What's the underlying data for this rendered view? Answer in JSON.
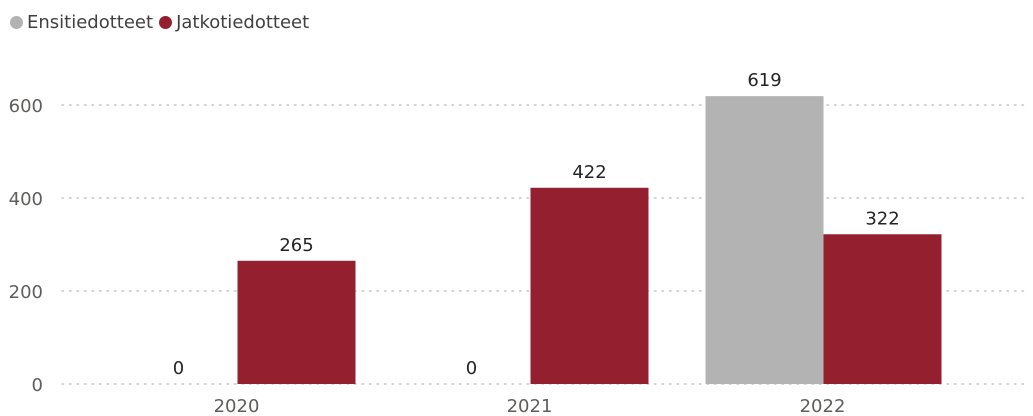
{
  "chart_data": {
    "type": "bar",
    "categories": [
      "2020",
      "2021",
      "2022"
    ],
    "series": [
      {
        "name": "Ensitiedotteet",
        "color": "#b3b3b3",
        "values": [
          0,
          0,
          619
        ]
      },
      {
        "name": "Jatkotiedotteet",
        "color": "#94202f",
        "values": [
          265,
          422,
          322
        ]
      }
    ],
    "yticks": [
      0,
      200,
      400,
      600
    ],
    "ylim": [
      0,
      640
    ],
    "grid": true,
    "legend_position": "top-left",
    "data_labels": true
  }
}
